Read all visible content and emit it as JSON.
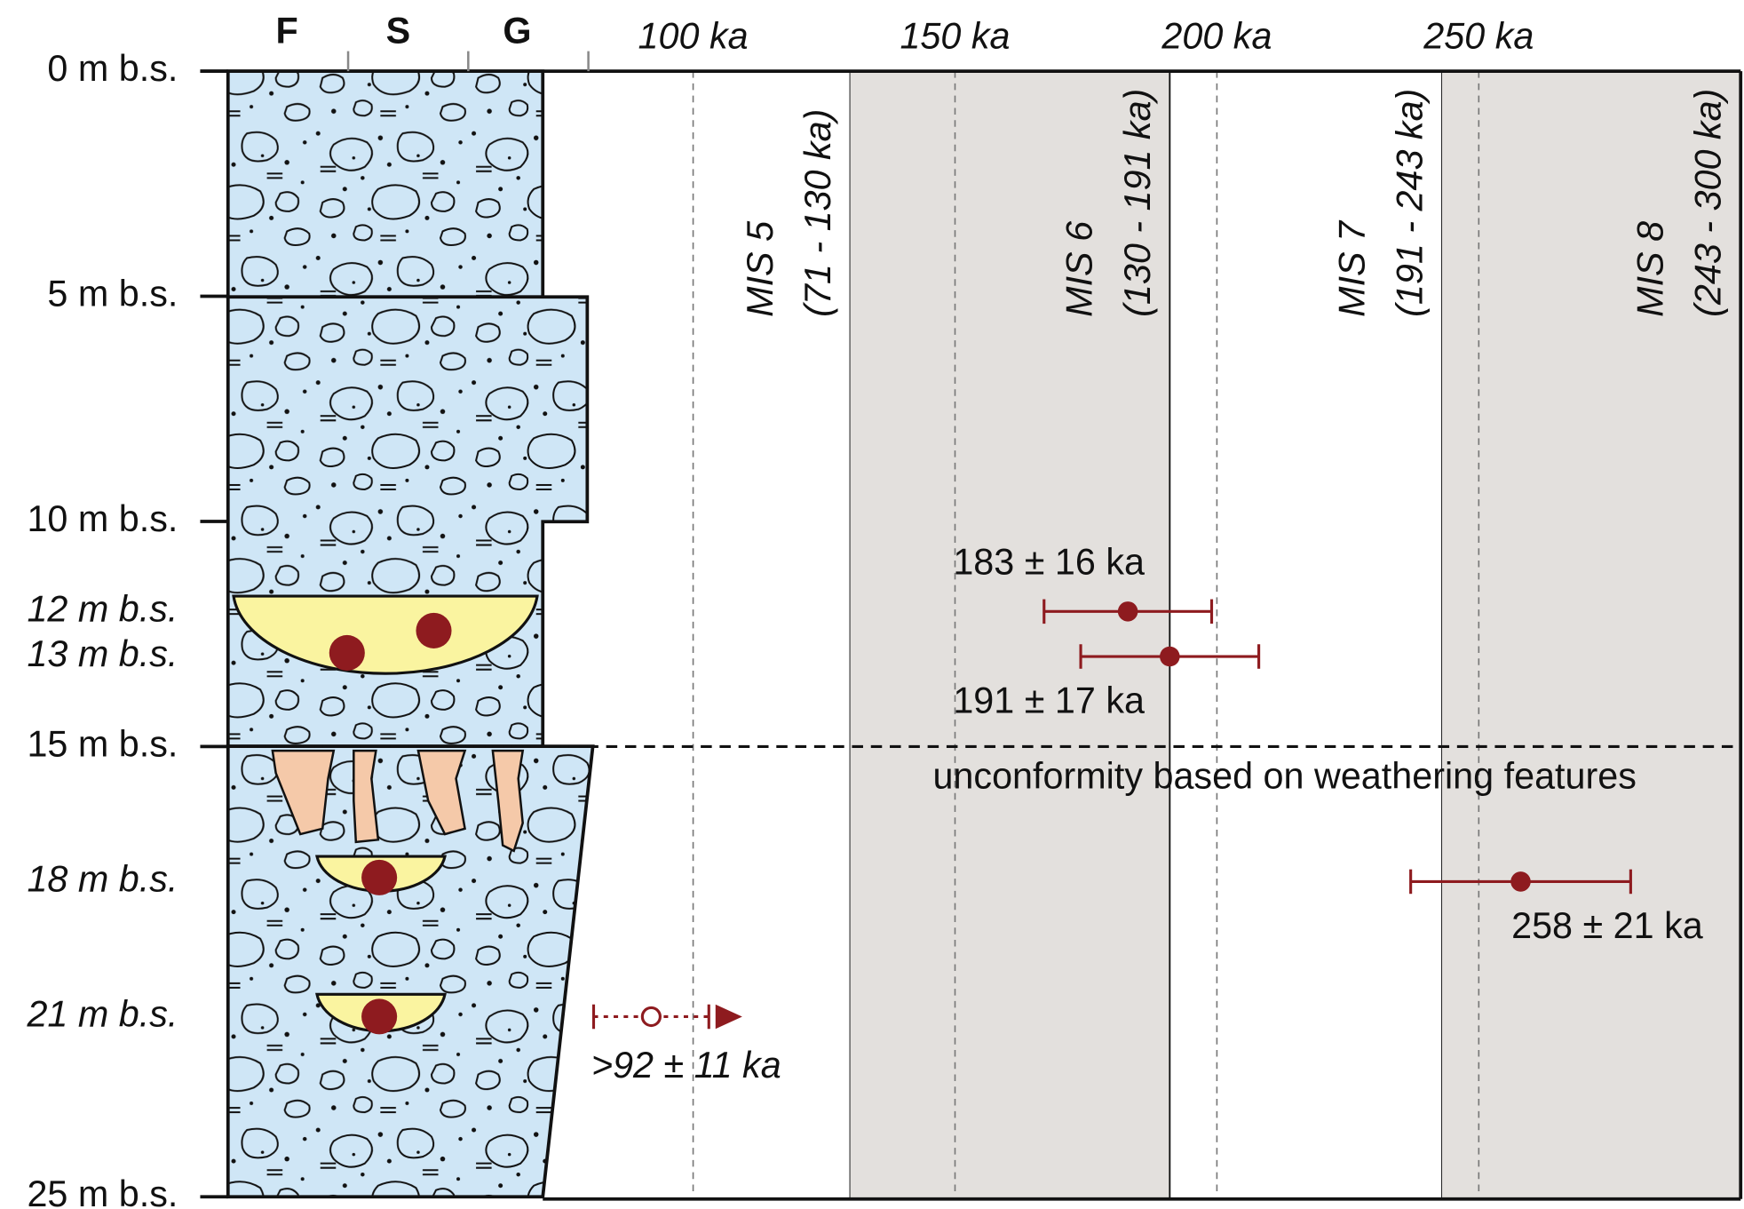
{
  "chart_data": {
    "type": "age-depth-log",
    "xlim": [
      80,
      300
    ],
    "xticks": [
      {
        "value": 100,
        "label": "100 ka"
      },
      {
        "value": 150,
        "label": "150 ka"
      },
      {
        "value": 200,
        "label": "200 ka"
      },
      {
        "value": 250,
        "label": "250 ka"
      }
    ],
    "ylim": [
      0,
      25
    ],
    "y_reversed": true,
    "yticks": [
      {
        "value": 0,
        "label": "0 m b.s."
      },
      {
        "value": 5,
        "label": "5 m b.s."
      },
      {
        "value": 10,
        "label": "10 m b.s."
      },
      {
        "value": 15,
        "label": "15 m b.s."
      },
      {
        "value": 25,
        "label": "25 m b.s."
      }
    ],
    "grid": true,
    "grain_size_classes": [
      "F",
      "S",
      "G"
    ],
    "stages": [
      {
        "name": "MIS 5",
        "range": "(71 - 130 ka)",
        "start": 71,
        "end": 130,
        "shaded": false
      },
      {
        "name": "MIS 6",
        "range": "(130 - 191 ka)",
        "start": 130,
        "end": 191,
        "shaded": true
      },
      {
        "name": "MIS 7",
        "range": "(191 - 243 ka)",
        "start": 191,
        "end": 243,
        "shaded": false
      },
      {
        "name": "MIS 8",
        "range": "(243 - 300 ka)",
        "start": 243,
        "end": 300,
        "shaded": true
      }
    ],
    "stage_shade_color": "#e3e0dd",
    "samples": [
      {
        "depth": 12,
        "depth_label": "12 m b.s.",
        "age": 183,
        "error": 16,
        "age_label": "183 ± 16 ka",
        "minimum": false
      },
      {
        "depth": 13,
        "depth_label": "13 m b.s.",
        "age": 191,
        "error": 17,
        "age_label": "191 ± 17 ka",
        "minimum": false
      },
      {
        "depth": 18,
        "depth_label": "18 m b.s.",
        "age": 258,
        "error": 21,
        "age_label": "258 ± 21 ka",
        "minimum": false
      },
      {
        "depth": 21,
        "depth_label": "21 m b.s.",
        "age": 92,
        "error": 11,
        "age_label": ">92 ± 11 ka",
        "minimum": true
      }
    ],
    "sample_color": "#8e1b1f",
    "unconformity": {
      "depth": 15,
      "label": "unconformity based on weathering features"
    }
  }
}
